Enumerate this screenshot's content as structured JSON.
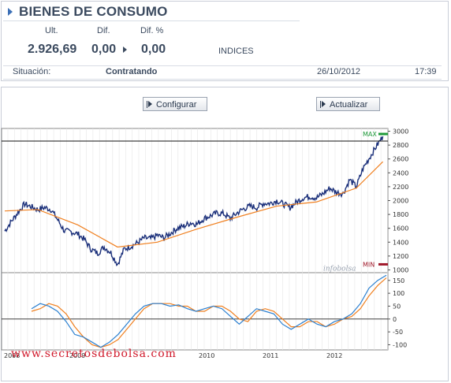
{
  "header": {
    "title": "BIENES DE CONSUMO",
    "labels": {
      "ult": "Ult.",
      "dif": "Dif.",
      "difpct": "Dif. %"
    },
    "values": {
      "ult": "2.926,69",
      "dif": "0,00",
      "difpct": "0,00"
    },
    "market": "INDICES"
  },
  "status": {
    "label": "Situación:",
    "value": "Contratando",
    "date": "26/10/2012",
    "time": "17:39"
  },
  "toolbar": {
    "configure_label": "Configurar",
    "update_label": "Actualizar"
  },
  "colors": {
    "price": "#1a2f7a",
    "ma": "#f08020",
    "max": "#1f9a3a",
    "min": "#a0182a",
    "osc_blue": "#2a7fd0",
    "osc_orange": "#f08020"
  },
  "chart_data": [
    {
      "type": "line",
      "title": "",
      "series": [
        {
          "name": "",
          "x": [
            "2008-01",
            "2008-02",
            "2008-03",
            "2008-04",
            "2008-05",
            "2008-06",
            "2008-07",
            "2008-08",
            "2008-09",
            "2008-10",
            "2008-11",
            "2008-12",
            "2009-01",
            "2009-02",
            "2009-03",
            "2009-04",
            "2009-05",
            "2009-06",
            "2009-07",
            "2009-08",
            "2009-09",
            "2009-10",
            "2009-11",
            "2009-12",
            "2010-01",
            "2010-02",
            "2010-03",
            "2010-04",
            "2010-05",
            "2010-06",
            "2010-07",
            "2010-08",
            "2010-09",
            "2010-10",
            "2010-11",
            "2010-12",
            "2011-01",
            "2011-02",
            "2011-03",
            "2011-04",
            "2011-05",
            "2011-06",
            "2011-07",
            "2011-08",
            "2011-09",
            "2011-10",
            "2011-11",
            "2011-12",
            "2012-01",
            "2012-02",
            "2012-03",
            "2012-04",
            "2012-05",
            "2012-06",
            "2012-07",
            "2012-08",
            "2012-09",
            "2012-10"
          ],
          "values": [
            1560,
            1700,
            1830,
            1950,
            1910,
            1870,
            1900,
            1870,
            1720,
            1560,
            1550,
            1520,
            1440,
            1300,
            1240,
            1330,
            1250,
            1080,
            1300,
            1340,
            1390,
            1460,
            1450,
            1500,
            1460,
            1530,
            1600,
            1630,
            1680,
            1660,
            1740,
            1780,
            1820,
            1810,
            1740,
            1820,
            1880,
            1920,
            1900,
            1960,
            1960,
            2000,
            1950,
            1900,
            1980,
            2040,
            2060,
            2040,
            2100,
            2180,
            2120,
            2100,
            2300,
            2200,
            2460,
            2620,
            2780,
            2926
          ]
        },
        {
          "name": "",
          "x": [
            "2008-01",
            "2008-06",
            "2008-12",
            "2009-06",
            "2009-12",
            "2010-06",
            "2010-12",
            "2011-06",
            "2011-12",
            "2012-06",
            "2012-10"
          ],
          "values": [
            1850,
            1870,
            1650,
            1330,
            1400,
            1590,
            1760,
            1920,
            1980,
            2180,
            2560
          ]
        }
      ],
      "y_ticks": [
        1000,
        1200,
        1400,
        1600,
        1800,
        2000,
        2200,
        2400,
        2600,
        2800,
        3000
      ],
      "ylim": [
        960,
        3040
      ],
      "annotations": {
        "max_label": "MAX",
        "min_label": "MIN",
        "source": "infobolsa"
      }
    },
    {
      "type": "line",
      "series": [
        {
          "name": "",
          "values": [
            40,
            60,
            50,
            30,
            -10,
            -60,
            -70,
            -90,
            -110,
            -90,
            -60,
            -20,
            20,
            50,
            60,
            60,
            50,
            55,
            40,
            30,
            40,
            50,
            40,
            10,
            -20,
            10,
            40,
            30,
            20,
            -20,
            -40,
            -20,
            0,
            -20,
            -30,
            -10,
            0,
            20,
            60,
            120,
            150,
            170
          ]
        },
        {
          "name": "",
          "values": [
            30,
            40,
            60,
            50,
            20,
            -30,
            -70,
            -100,
            -110,
            -100,
            -80,
            -40,
            0,
            40,
            60,
            60,
            60,
            50,
            50,
            30,
            30,
            50,
            50,
            30,
            0,
            -10,
            30,
            40,
            30,
            0,
            -30,
            -30,
            -10,
            -10,
            -30,
            -20,
            0,
            10,
            40,
            90,
            130,
            160
          ]
        }
      ],
      "y_ticks": [
        -100,
        -50,
        0,
        50,
        100,
        150
      ],
      "ylim": [
        -120,
        180
      ]
    }
  ],
  "x_axis": {
    "labels": [
      "2008",
      "2009",
      "2010",
      "2011",
      "2012"
    ]
  },
  "watermark": "www.secretosdebolsa.com"
}
